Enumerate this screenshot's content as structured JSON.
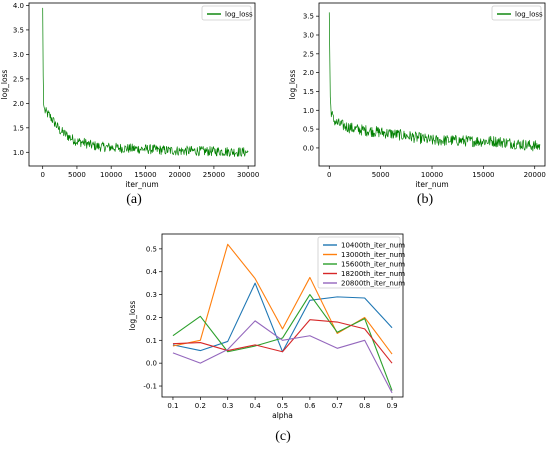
{
  "chart_data": [
    {
      "panel": "(a)",
      "type": "line",
      "xlabel": "iter_num",
      "ylabel": "log_loss",
      "xlim": [
        -2000,
        31000
      ],
      "ylim": [
        0.72,
        4.05
      ],
      "xticks": [
        "0",
        "5000",
        "10000",
        "15000",
        "20000",
        "25000",
        "30000"
      ],
      "yticks": [
        "1.0",
        "1.5",
        "2.0",
        "2.5",
        "3.0",
        "3.5",
        "4.0"
      ],
      "legend": {
        "position": "top-right",
        "entries": [
          "log_loss"
        ]
      },
      "grid": false,
      "series": [
        {
          "name": "log_loss",
          "color": "#008000",
          "x": [
            0,
            100,
            300,
            600,
            1000,
            1500,
            2000,
            2500,
            3000,
            4000,
            5000,
            6000,
            7000,
            8000,
            10000,
            12000,
            14000,
            16000,
            18000,
            20000,
            22000,
            24000,
            26000,
            28000,
            30000
          ],
          "y": [
            3.95,
            2.0,
            1.85,
            1.8,
            1.75,
            1.65,
            1.55,
            1.45,
            1.4,
            1.3,
            1.22,
            1.2,
            1.15,
            1.12,
            1.1,
            1.08,
            1.07,
            1.06,
            1.04,
            1.03,
            1.03,
            1.02,
            1.02,
            1.01,
            1.0
          ],
          "noise": 0.1
        }
      ]
    },
    {
      "panel": "(b)",
      "type": "line",
      "xlabel": "iter_num",
      "ylabel": "log_loss",
      "xlim": [
        -1000,
        21000
      ],
      "ylim": [
        -0.48,
        3.85
      ],
      "xticks": [
        "0",
        "5000",
        "10000",
        "15000",
        "20000"
      ],
      "yticks": [
        "0.0",
        "0.5",
        "1.0",
        "1.5",
        "2.0",
        "2.5",
        "3.0",
        "3.5"
      ],
      "legend": {
        "position": "top-right",
        "entries": [
          "log_loss"
        ]
      },
      "grid": false,
      "series": [
        {
          "name": "log_loss",
          "color": "#008000",
          "x": [
            0,
            100,
            200,
            400,
            800,
            1500,
            2500,
            4000,
            6000,
            8000,
            10000,
            12000,
            14000,
            16000,
            18000,
            20000,
            20500
          ],
          "y": [
            3.6,
            1.3,
            0.95,
            0.75,
            0.65,
            0.58,
            0.5,
            0.45,
            0.38,
            0.3,
            0.2,
            0.2,
            0.18,
            0.18,
            0.12,
            0.05,
            0.05
          ],
          "noise": 0.15
        }
      ]
    },
    {
      "panel": "(c)",
      "type": "line",
      "xlabel": "alpha",
      "ylabel": "log_loss",
      "xlim": [
        0.06,
        0.94
      ],
      "ylim": [
        -0.148,
        0.565
      ],
      "categories": [
        0.1,
        0.2,
        0.3,
        0.4,
        0.5,
        0.6,
        0.7,
        0.8,
        0.9
      ],
      "xticks": [
        "0.1",
        "0.2",
        "0.3",
        "0.4",
        "0.5",
        "0.6",
        "0.7",
        "0.8",
        "0.9"
      ],
      "yticks": [
        "-0.1",
        "0.0",
        "0.1",
        "0.2",
        "0.3",
        "0.4",
        "0.5"
      ],
      "legend": {
        "position": "top-right",
        "entries": [
          "10400th_iter_num",
          "13000th_iter_num",
          "15600th_iter_num",
          "18200th_iter_num",
          "20800th_iter_num"
        ]
      },
      "grid": false,
      "series": [
        {
          "name": "10400th_iter_num",
          "color": "#1f77b4",
          "values": [
            0.08,
            0.055,
            0.095,
            0.35,
            0.05,
            0.275,
            0.29,
            0.285,
            0.155
          ]
        },
        {
          "name": "13000th_iter_num",
          "color": "#ff7f0e",
          "values": [
            0.075,
            0.1,
            0.52,
            0.37,
            0.15,
            0.375,
            0.13,
            0.2,
            0.04
          ]
        },
        {
          "name": "15600th_iter_num",
          "color": "#2ca02c",
          "values": [
            0.12,
            0.205,
            0.05,
            0.075,
            0.11,
            0.3,
            0.135,
            0.195,
            -0.12
          ]
        },
        {
          "name": "18200th_iter_num",
          "color": "#d62728",
          "values": [
            0.085,
            0.09,
            0.055,
            0.08,
            0.05,
            0.19,
            0.18,
            0.15,
            0.0
          ]
        },
        {
          "name": "20800th_iter_num",
          "color": "#9467bd",
          "values": [
            0.045,
            0.0,
            0.06,
            0.185,
            0.1,
            0.12,
            0.065,
            0.1,
            -0.13
          ]
        }
      ]
    }
  ],
  "captions": {
    "a": "(a)",
    "b": "(b)",
    "c": "(c)"
  }
}
